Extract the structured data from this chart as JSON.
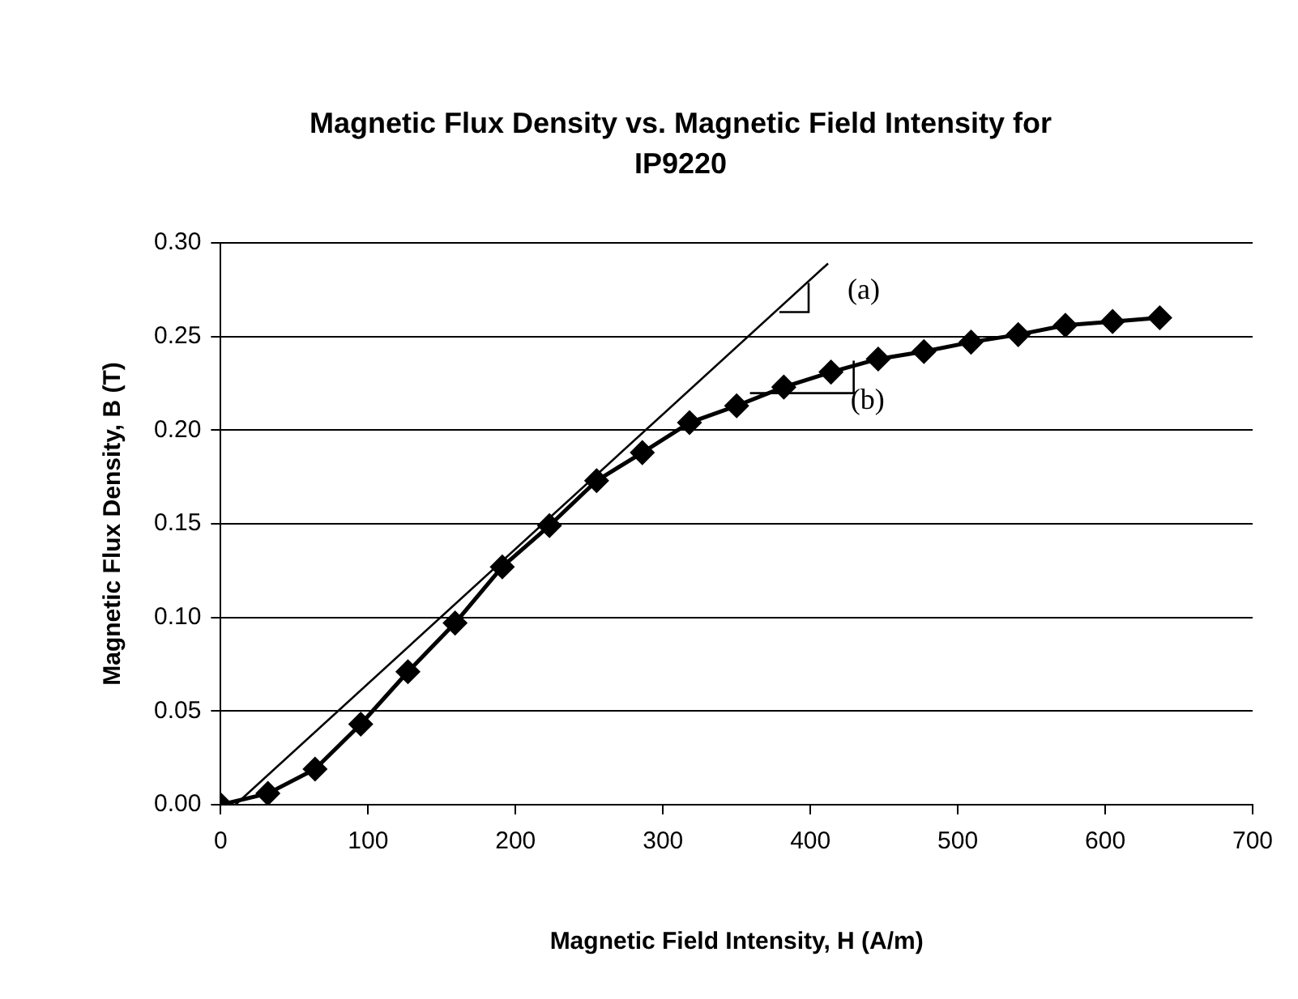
{
  "chart_data": {
    "type": "line",
    "title": "Magnetic Flux Density vs. Magnetic Field Intensity for IP9220",
    "xlabel": "Magnetic Field Intensity, H (A/m)",
    "ylabel": "Magnetic Flux Density, B (T)",
    "xlim": [
      0,
      700
    ],
    "xticks": [
      0,
      100,
      200,
      300,
      400,
      500,
      600,
      700
    ],
    "ylim": [
      0,
      0.3
    ],
    "yticks": [
      {
        "value": 0,
        "label": "0.00"
      },
      {
        "value": 0.05,
        "label": "0.05"
      },
      {
        "value": 0.1,
        "label": "0.10"
      },
      {
        "value": 0.15,
        "label": "0.15"
      },
      {
        "value": 0.2,
        "label": "0.20"
      },
      {
        "value": 0.25,
        "label": "0.25"
      },
      {
        "value": 0.3,
        "label": "0.30"
      }
    ],
    "grid": "y",
    "legend": false,
    "line_style": "solid",
    "series": [
      {
        "color": "#000000",
        "marker": "diamond",
        "x": [
          0,
          32,
          64,
          95,
          127,
          159,
          191,
          223,
          255,
          286,
          318,
          350,
          382,
          414,
          446,
          477,
          509,
          541,
          573,
          605,
          637
        ],
        "values": [
          0,
          0.006,
          0.019,
          0.043,
          0.071,
          0.097,
          0.127,
          0.149,
          0.173,
          0.188,
          0.204,
          0.213,
          0.223,
          0.231,
          0.238,
          0.242,
          0.247,
          0.251,
          0.256,
          0.258,
          0.26
        ]
      },
      {
        "color": "#000000",
        "marker": "none",
        "x": [
          10,
          412
        ],
        "values": [
          0,
          0.289
        ]
      }
    ],
    "annotations": [
      {
        "text": "(a)",
        "x": 412,
        "y": 0.289
      },
      {
        "text": "(b)",
        "x": 414,
        "y": 0.231
      }
    ]
  }
}
